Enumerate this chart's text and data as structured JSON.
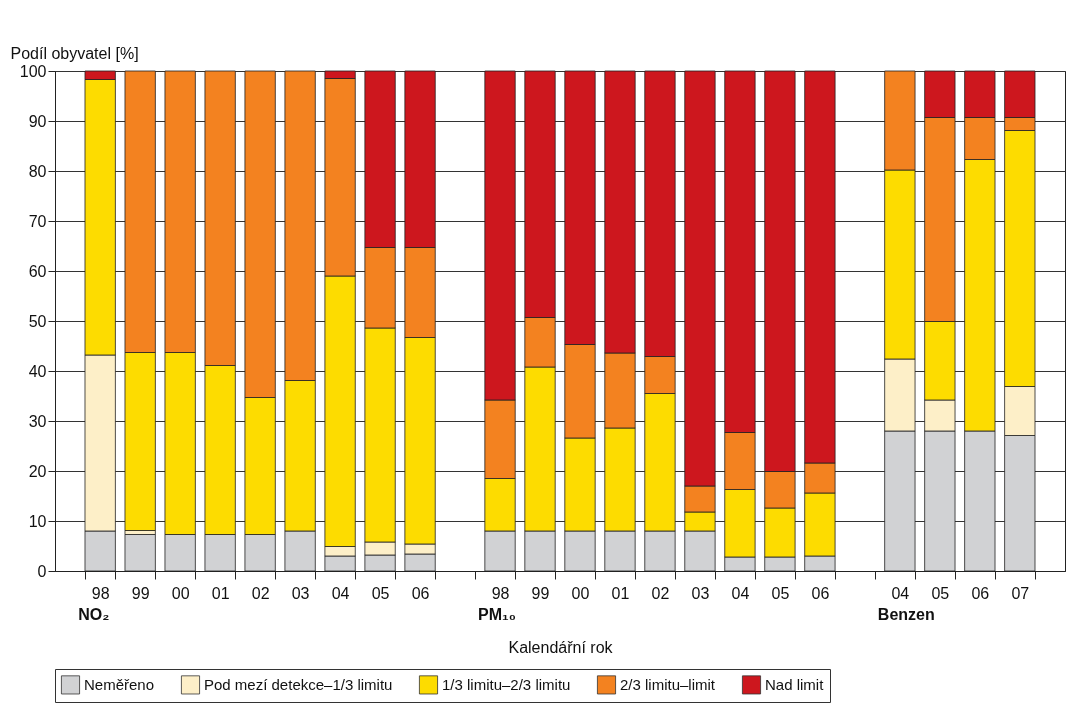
{
  "chart_data": {
    "type": "bar",
    "stacked": true,
    "ylabel": "Podíl obyvatel [%]",
    "xlabel": "Kalendářní rok",
    "categories": [
      "98",
      "99",
      "00",
      "01",
      "02",
      "03",
      "04",
      "05",
      "06",
      null,
      "98",
      "99",
      "00",
      "01",
      "02",
      "03",
      "04",
      "05",
      "06",
      null,
      "04",
      "05",
      "06",
      "07"
    ],
    "annotations": [
      "NO₂",
      "PM₁₀",
      "Benzen"
    ],
    "ylim": [
      0,
      100
    ],
    "yticks": [
      0,
      10,
      20,
      30,
      40,
      50,
      60,
      70,
      80,
      90,
      100
    ],
    "grid": "y",
    "legend": "bottom",
    "series": [
      {
        "name": "Neměřeno",
        "color": "#d1d2d4",
        "values": [
          8,
          7.3,
          7.3,
          7.3,
          7.3,
          8,
          3,
          3.2,
          3.4,
          null,
          8,
          8,
          8,
          8,
          8,
          8,
          2.8,
          2.8,
          3,
          null,
          28,
          28,
          28,
          27.1
        ]
      },
      {
        "name": "Pod mezí detekce–1/3 limitu",
        "color": "#fdefc8",
        "values": [
          35.2,
          0.8,
          null,
          null,
          null,
          null,
          1.9,
          2.6,
          2,
          null,
          null,
          null,
          null,
          null,
          null,
          null,
          null,
          null,
          null,
          null,
          14.4,
          6.2,
          null,
          9.8
        ]
      },
      {
        "name": "1/3 limitu–2/3 limitu",
        "color": "#fddc00",
        "values": [
          55.1,
          35.6,
          36.4,
          33.8,
          27.4,
          30.1,
          54.1,
          42.8,
          41.3,
          null,
          10.5,
          32.8,
          18.6,
          20.6,
          27.5,
          3.8,
          13.5,
          9.8,
          12.6,
          null,
          37.8,
          15.7,
          54.3,
          51.2
        ]
      },
      {
        "name": "2/3 limitu–limit",
        "color": "#f38220",
        "values": [
          null,
          56.3,
          56.3,
          58.9,
          65.3,
          61.9,
          39.5,
          16.1,
          18,
          null,
          15.7,
          9.9,
          18.7,
          15,
          7.4,
          5.2,
          11.4,
          7.3,
          6,
          null,
          19.8,
          40.8,
          8.4,
          2.6
        ]
      },
      {
        "name": "Nad limit",
        "color": "#cd171e",
        "values": [
          1.7,
          null,
          null,
          null,
          null,
          null,
          1.5,
          35.3,
          35.3,
          null,
          65.8,
          49.3,
          54.7,
          56.4,
          57.1,
          83,
          72.3,
          80.1,
          78.4,
          null,
          null,
          9.3,
          9.3,
          9.3
        ]
      }
    ]
  }
}
